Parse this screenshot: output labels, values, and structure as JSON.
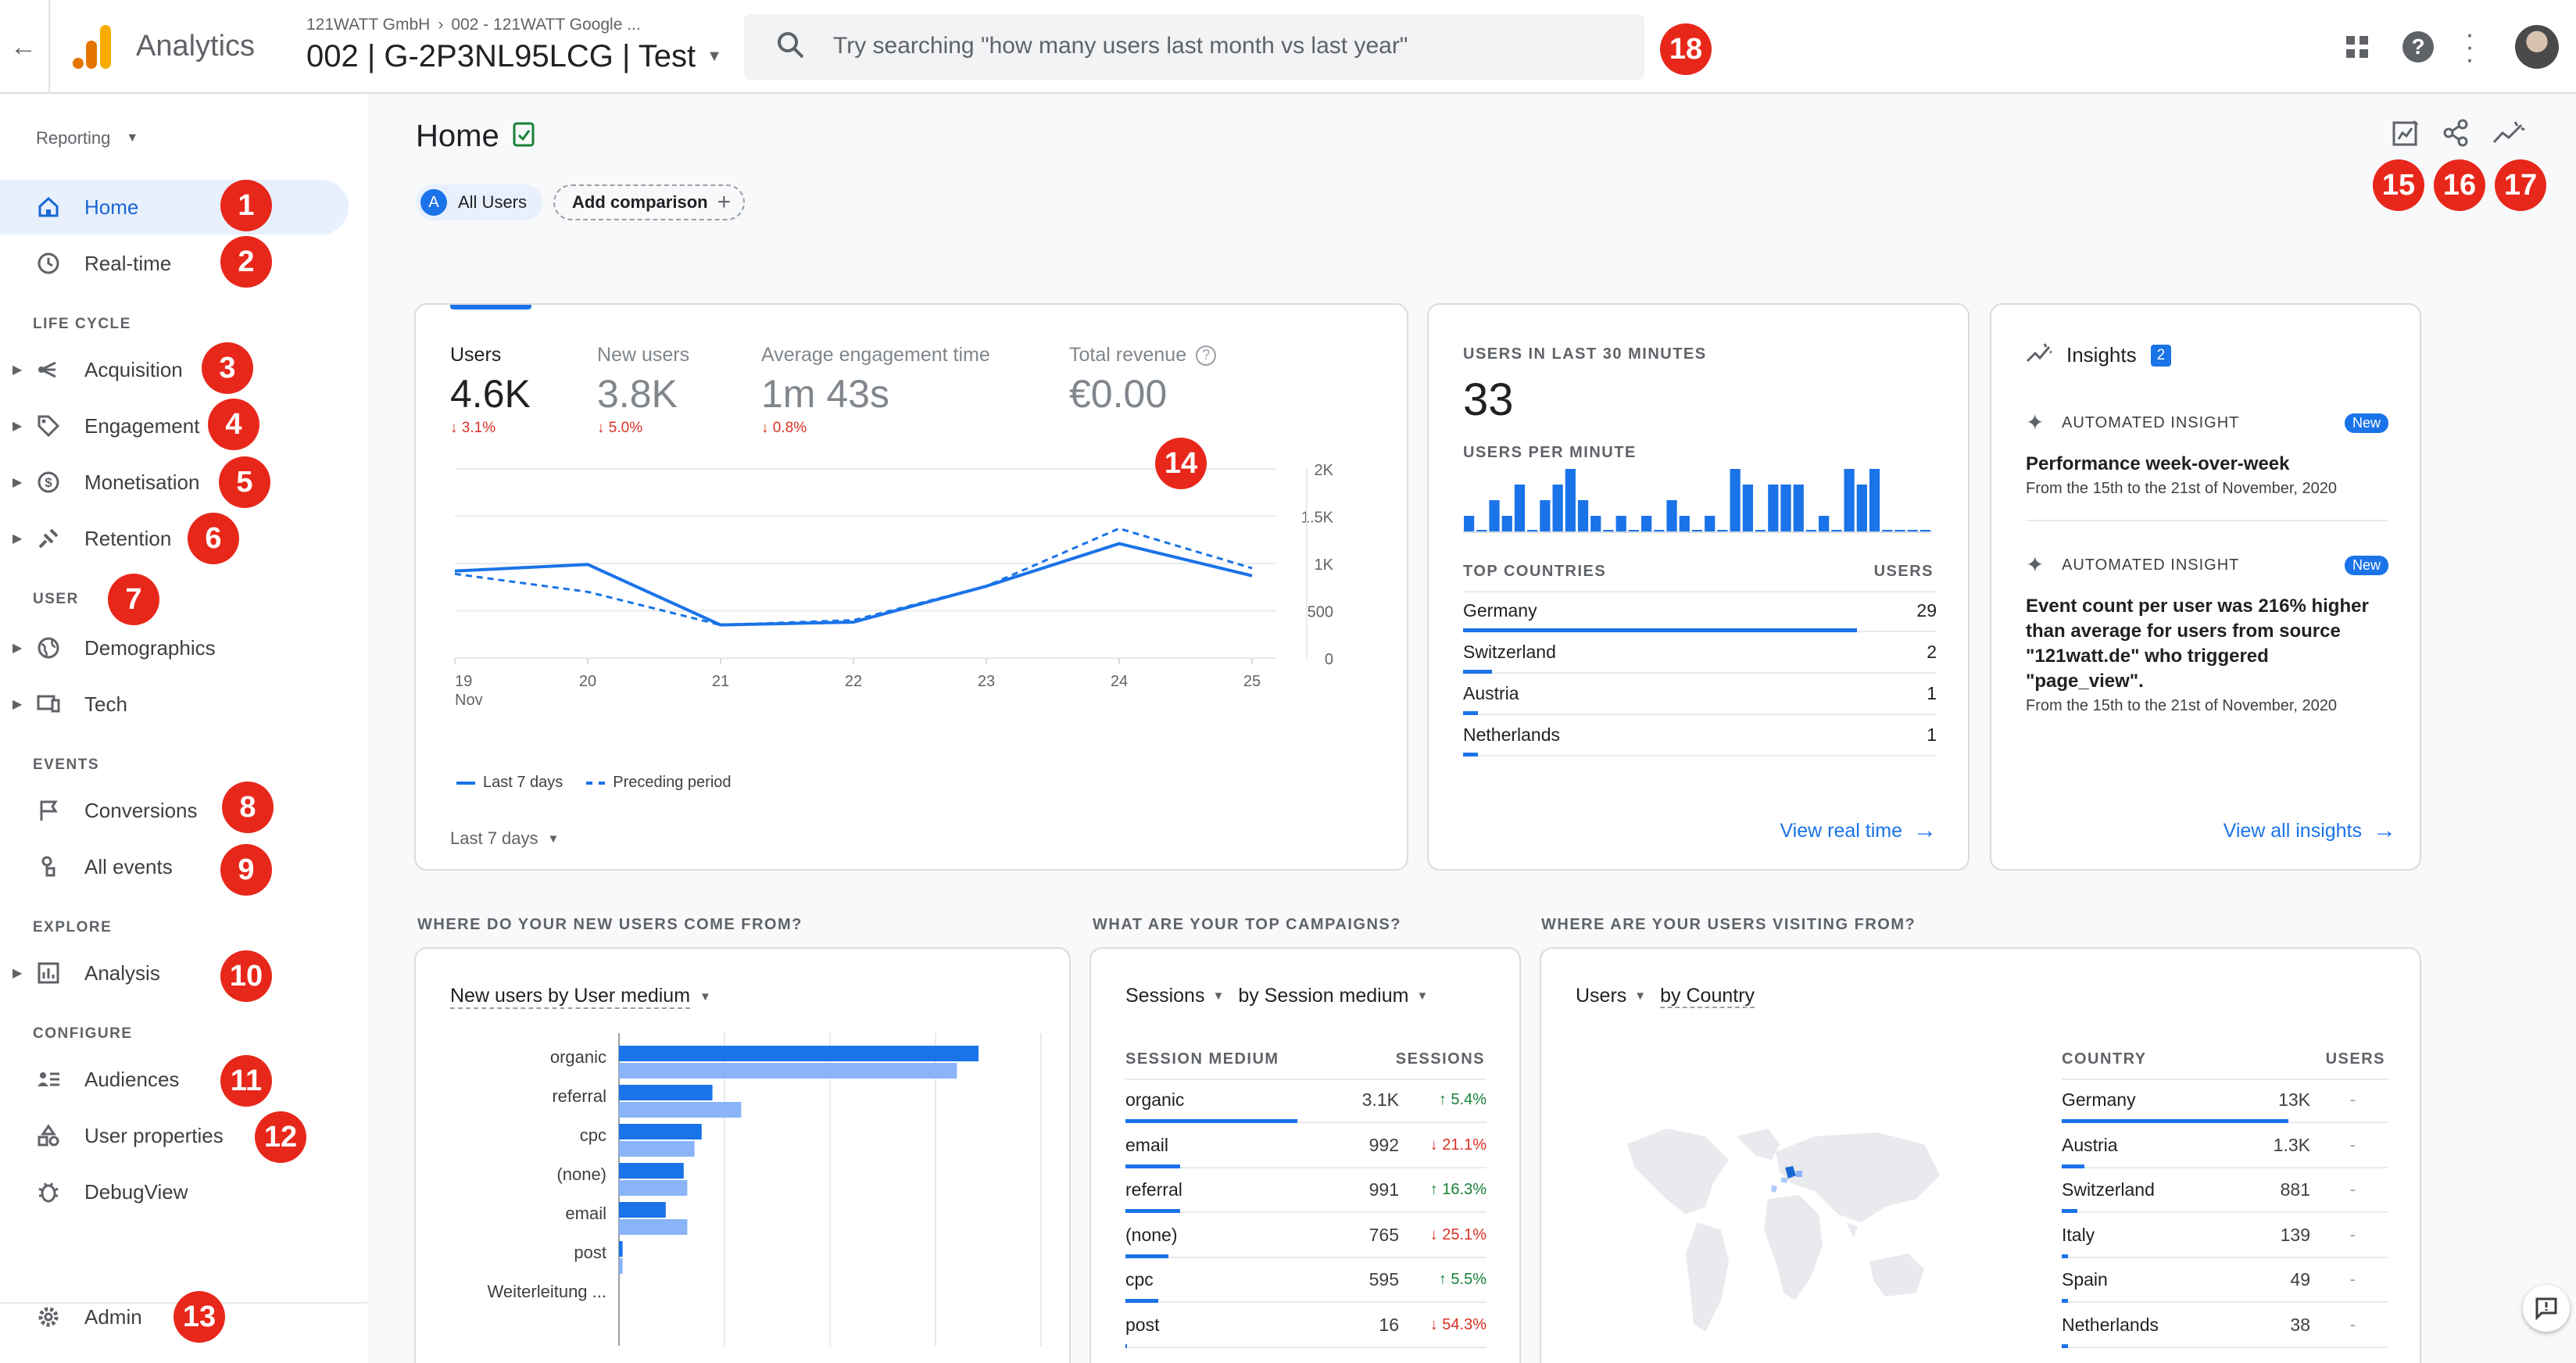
{
  "header": {
    "app_name": "Analytics",
    "breadcrumb_account": "121WATT GmbH",
    "breadcrumb_separator": "›",
    "breadcrumb_property": "002 - 121WATT Google ...",
    "property_name": "002 | G-2P3NL95LCG | Test",
    "search_placeholder": "Try searching \"how many users last month vs last year\""
  },
  "sidebar": {
    "reporting_label": "Reporting",
    "items": {
      "home": "Home",
      "realtime": "Real-time",
      "lifecycle": "LIFE CYCLE",
      "acquisition": "Acquisition",
      "engagement": "Engagement",
      "monetisation": "Monetisation",
      "retention": "Retention",
      "user": "USER",
      "demographics": "Demographics",
      "tech": "Tech",
      "events": "EVENTS",
      "conversions": "Conversions",
      "all_events": "All events",
      "explore": "EXPLORE",
      "analysis": "Analysis",
      "configure": "CONFIGURE",
      "audiences": "Audiences",
      "user_properties": "User properties",
      "debugview": "DebugView",
      "admin": "Admin"
    }
  },
  "badges": [
    "1",
    "2",
    "3",
    "4",
    "5",
    "6",
    "7",
    "8",
    "9",
    "10",
    "11",
    "12",
    "13",
    "14",
    "15",
    "16",
    "17",
    "18"
  ],
  "page": {
    "title": "Home",
    "segment_letter": "A",
    "segment_label": "All Users",
    "add_comparison": "Add comparison"
  },
  "metrics": {
    "users_label": "Users",
    "users_value": "4.6K",
    "users_delta": "↓ 3.1%",
    "new_users_label": "New users",
    "new_users_value": "3.8K",
    "new_users_delta": "↓ 5.0%",
    "engagement_label": "Average engagement time",
    "engagement_value": "1m 43s",
    "engagement_delta": "↓ 0.8%",
    "revenue_label": "Total revenue",
    "revenue_value": "€0.00",
    "legend_last7": "Last 7 days",
    "legend_preceding": "Preceding period",
    "date_range": "Last 7 days"
  },
  "chart_data": {
    "type": "line",
    "x": [
      "19\nNov",
      "20",
      "21",
      "22",
      "23",
      "24",
      "25"
    ],
    "x_tick_labels": [
      "19",
      "20",
      "21",
      "22",
      "23",
      "24",
      "25"
    ],
    "x_sub_label": "Nov",
    "y_ticks": [
      "2K",
      "1.5K",
      "1K",
      "500",
      "0"
    ],
    "ylim": [
      0,
      2000
    ],
    "series": [
      {
        "name": "Last 7 days",
        "values": [
          920,
          990,
          350,
          380,
          760,
          1210,
          870
        ],
        "color": "#1a73e8",
        "style": "solid"
      },
      {
        "name": "Preceding period",
        "values": [
          890,
          700,
          350,
          400,
          760,
          1370,
          950
        ],
        "color": "#1a73e8",
        "style": "dashed"
      }
    ]
  },
  "realtime": {
    "title": "USERS IN LAST 30 MINUTES",
    "value": "33",
    "per_minute_label": "USERS PER MINUTE",
    "per_minute_values": [
      1,
      0,
      2,
      1,
      3,
      0,
      2,
      3,
      4,
      2,
      1,
      0,
      1,
      0,
      1,
      0,
      2,
      1,
      0,
      1,
      0,
      4,
      3,
      0,
      3,
      3,
      3,
      0,
      1,
      0,
      4,
      3,
      4,
      0,
      0,
      0,
      0
    ],
    "countries_header": "TOP COUNTRIES",
    "users_header": "USERS",
    "countries": [
      {
        "name": "Germany",
        "value": "29",
        "share": 0.95
      },
      {
        "name": "Switzerland",
        "value": "2",
        "share": 0.07
      },
      {
        "name": "Austria",
        "value": "1",
        "share": 0.035
      },
      {
        "name": "Netherlands",
        "value": "1",
        "share": 0.035
      }
    ],
    "view_link": "View real time"
  },
  "insights": {
    "title": "Insights",
    "count": "2",
    "items": [
      {
        "kind": "AUTOMATED INSIGHT",
        "tag": "New",
        "headline": "Performance week-over-week",
        "body": "",
        "range": "From the 15th to the 21st of November, 2020"
      },
      {
        "kind": "AUTOMATED INSIGHT",
        "tag": "New",
        "headline": "Event count per user was 216% higher than average for users from source \"121watt.de\" who triggered \"page_view\".",
        "body": "",
        "range": "From the 15th to the 21st of November, 2020"
      }
    ],
    "view_link": "View all insights"
  },
  "sections": {
    "new_users_title": "WHERE DO YOUR NEW USERS COME FROM?",
    "campaigns_title": "WHAT ARE YOUR TOP CAMPAIGNS?",
    "visiting_title": "WHERE ARE YOUR USERS VISITING FROM?"
  },
  "medium_card": {
    "selector": "New users by User medium",
    "categories": [
      "organic",
      "referral",
      "cpc",
      "(none)",
      "email",
      "post",
      "Weiterleitung ..."
    ],
    "current": [
      1,
      0.26,
      0.23,
      0.18,
      0.13,
      0.01,
      0
    ],
    "previous": [
      0.94,
      0.34,
      0.21,
      0.19,
      0.19,
      0.01,
      0
    ]
  },
  "campaigns": {
    "metric": "Sessions",
    "dimension": "by Session medium",
    "col1": "SESSION MEDIUM",
    "col2": "SESSIONS",
    "rows": [
      {
        "name": "organic",
        "value": "3.1K",
        "delta": "↑ 5.4%",
        "dir": "up",
        "share": 1.0
      },
      {
        "name": "email",
        "value": "992",
        "delta": "↓ 21.1%",
        "dir": "down",
        "share": 0.32
      },
      {
        "name": "referral",
        "value": "991",
        "delta": "↑ 16.3%",
        "dir": "up",
        "share": 0.32
      },
      {
        "name": "(none)",
        "value": "765",
        "delta": "↓ 25.1%",
        "dir": "down",
        "share": 0.25
      },
      {
        "name": "cpc",
        "value": "595",
        "delta": "↑ 5.5%",
        "dir": "up",
        "share": 0.19
      },
      {
        "name": "post",
        "value": "16",
        "delta": "↓ 54.3%",
        "dir": "down",
        "share": 0.01
      }
    ]
  },
  "countries_card": {
    "metric": "Users",
    "dimension": "by Country",
    "col1": "COUNTRY",
    "col2": "USERS",
    "rows": [
      {
        "name": "Germany",
        "value": "13K",
        "delta": "-",
        "share": 1.0
      },
      {
        "name": "Austria",
        "value": "1.3K",
        "delta": "-",
        "share": 0.1
      },
      {
        "name": "Switzerland",
        "value": "881",
        "delta": "-",
        "share": 0.07
      },
      {
        "name": "Italy",
        "value": "139",
        "delta": "-",
        "share": 0.012
      },
      {
        "name": "Spain",
        "value": "49",
        "delta": "-",
        "share": 0.005
      },
      {
        "name": "Netherlands",
        "value": "38",
        "delta": "-",
        "share": 0.004
      }
    ]
  },
  "colors": {
    "accent": "#1a73e8",
    "accent_light": "#8ab4f8",
    "badge": "#e8271b",
    "down": "#d93025",
    "up": "#188038"
  }
}
